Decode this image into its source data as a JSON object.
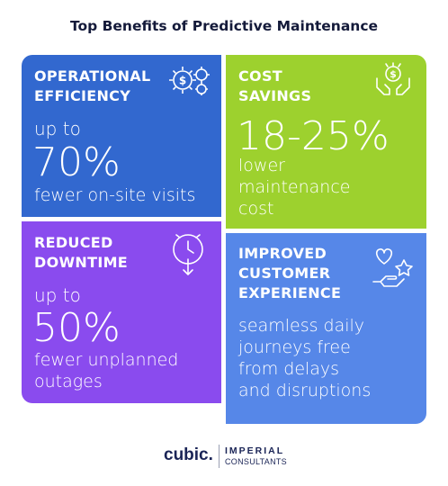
{
  "title": "Top Benefits of Predictive Maintenance",
  "cards": [
    {
      "heading": [
        "OPERATIONAL",
        "EFFICIENCY"
      ],
      "lead": "up to",
      "value": "70%",
      "description": [
        "fewer on-site visits"
      ],
      "icon": "gears-dollar-icon",
      "color": "#3268cf"
    },
    {
      "heading": [
        "COST",
        "SAVINGS"
      ],
      "value": "18-25%",
      "description": [
        "lower",
        "maintenance",
        "cost"
      ],
      "icon": "hands-money-icon",
      "color": "#9dd12e"
    },
    {
      "heading": [
        "REDUCED",
        "DOWNTIME"
      ],
      "lead": "up to",
      "value": "50%",
      "description": [
        "fewer unplanned",
        "outages"
      ],
      "icon": "clock-arrow-icon",
      "color": "#8a4bee"
    },
    {
      "heading": [
        "IMPROVED",
        "CUSTOMER",
        "EXPERIENCE"
      ],
      "description": [
        "seamless daily",
        "journeys free",
        "from delays",
        "and disruptions"
      ],
      "icon": "heart-star-hand-icon",
      "color": "#5687e8"
    }
  ],
  "footer": {
    "brand": "cubic.",
    "partner_line1": "IMPERIAL",
    "partner_line2": "CONSULTANTS"
  }
}
